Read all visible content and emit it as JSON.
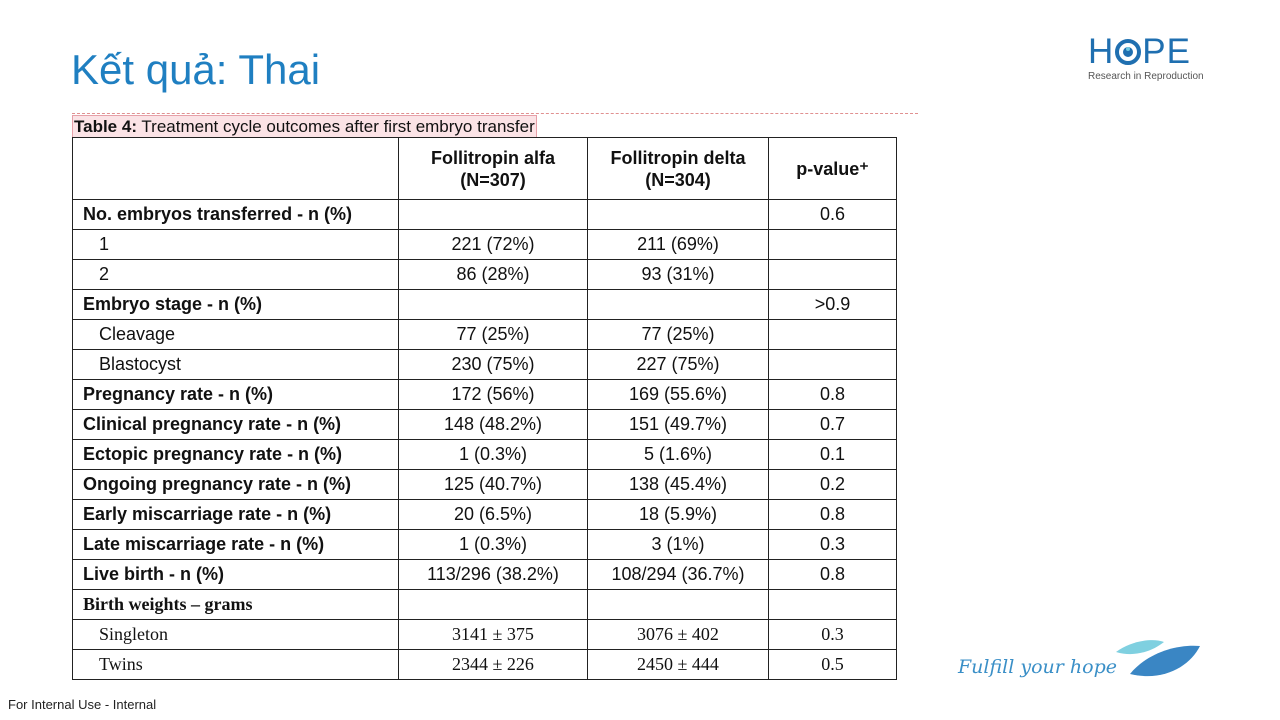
{
  "slide": {
    "title": "Kết quả: Thai",
    "footer": "For Internal Use - Internal",
    "slogan": "Fulfill your hope"
  },
  "logo": {
    "word_left": "H",
    "word_right": "PE",
    "subtitle": "Research in Reproduction",
    "icon": "eye-o-icon",
    "brand_color": "#1f6fb0"
  },
  "table": {
    "caption_bold": "Table 4:",
    "caption_text": " Treatment cycle outcomes after first embryo transfer",
    "headers": [
      "",
      "Follitropin alfa\n(N=307)",
      "Follitropin delta\n(N=304)",
      "p-value⁺"
    ],
    "header_lines": [
      [
        "Follitropin alfa",
        "(N=307)"
      ],
      [
        "Follitropin delta",
        "(N=304)"
      ],
      [
        "p-value⁺"
      ]
    ],
    "rows": [
      {
        "label": "No. embryos transferred - n (%)",
        "alfa": "",
        "delta": "",
        "p": "0.6"
      },
      {
        "label": "1",
        "alfa": "221 (72%)",
        "delta": "211 (69%)",
        "p": ""
      },
      {
        "label": "2",
        "alfa": "86 (28%)",
        "delta": "93 (31%)",
        "p": ""
      },
      {
        "label": "Embryo stage - n (%)",
        "alfa": "",
        "delta": "",
        "p": ">0.9"
      },
      {
        "label": "Cleavage",
        "alfa": "77 (25%)",
        "delta": "77 (25%)",
        "p": ""
      },
      {
        "label": "Blastocyst",
        "alfa": "230 (75%)",
        "delta": "227 (75%)",
        "p": ""
      },
      {
        "label": "Pregnancy rate - n (%)",
        "alfa": "172 (56%)",
        "delta": "169 (55.6%)",
        "p": "0.8"
      },
      {
        "label": "Clinical pregnancy rate - n (%)",
        "alfa": "148 (48.2%)",
        "delta": "151 (49.7%)",
        "p": "0.7"
      },
      {
        "label": "Ectopic pregnancy rate - n (%)",
        "alfa": "1 (0.3%)",
        "delta": "5 (1.6%)",
        "p": "0.1"
      },
      {
        "label": "Ongoing pregnancy rate - n (%)",
        "alfa": "125 (40.7%)",
        "delta": "138 (45.4%)",
        "p": "0.2"
      },
      {
        "label": "Early miscarriage rate - n (%)",
        "alfa": "20 (6.5%)",
        "delta": "18 (5.9%)",
        "p": "0.8"
      },
      {
        "label": "Late miscarriage rate - n (%)",
        "alfa": "1 (0.3%)",
        "delta": "3 (1%)",
        "p": "0.3"
      },
      {
        "label": "Live birth - n (%)",
        "alfa": "113/296 (38.2%)",
        "delta": "108/294 (36.7%)",
        "p": "0.8"
      },
      {
        "label": "Birth weights – grams",
        "alfa": "",
        "delta": "",
        "p": ""
      },
      {
        "label": "Singleton",
        "alfa": "3141 ± 375",
        "delta": "3076 ± 402",
        "p": "0.3"
      },
      {
        "label": "Twins",
        "alfa": "2344 ± 226",
        "delta": "2450 ± 444",
        "p": "0.5"
      }
    ]
  },
  "colors": {
    "title": "#1f7fc1",
    "slogan": "#3a8fc7",
    "leaf_light": "#7fd0e0",
    "leaf_dark": "#3a86c4"
  }
}
